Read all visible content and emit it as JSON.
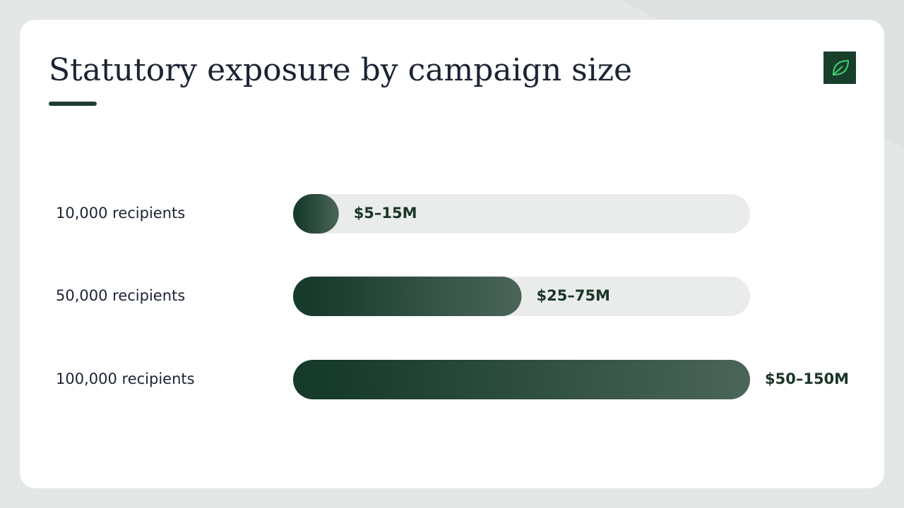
{
  "chart_data": {
    "type": "bar",
    "orientation": "horizontal",
    "title": "Statutory exposure by campaign size",
    "categories": [
      "10,000 recipients",
      "50,000 recipients",
      "100,000 recipients"
    ],
    "values": [
      15,
      75,
      150
    ],
    "value_labels": [
      "$5–15M",
      "$25–75M",
      "$50–150M"
    ],
    "xlim": [
      0,
      150
    ],
    "color": "#163b2b"
  }
}
